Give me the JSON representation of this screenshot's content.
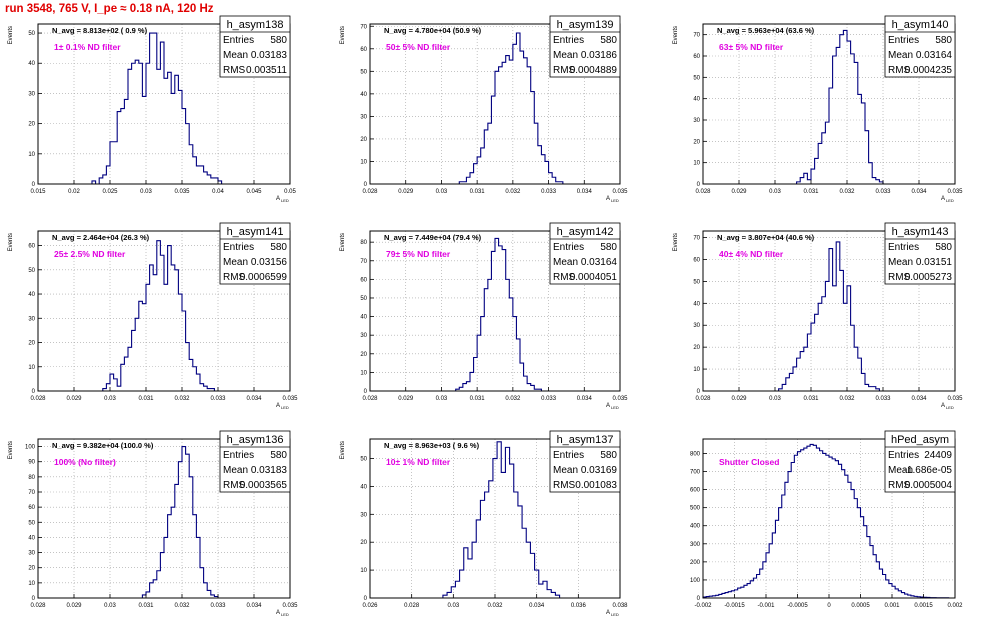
{
  "run_title": "run 3548,   765 V, I_pe ≈ 0.18 nA, 120 Hz",
  "colors": {
    "title": "#e00000",
    "histogram": "#000080",
    "annotation": "#e000e0",
    "grid": "#a0a0a0",
    "axis": "#000000"
  },
  "chart_data": [
    {
      "type": "bar",
      "hist_name": "h_asym138",
      "ylabel": "Events",
      "xlabel": "A_{LED}",
      "xlim": [
        0.015,
        0.05
      ],
      "ylim": [
        0,
        53
      ],
      "xticks": [
        "0.015",
        "0.02",
        "0.025",
        "0.03",
        "0.035",
        "0.04",
        "0.045",
        "0.05"
      ],
      "yticks": [
        "0",
        "10",
        "20",
        "30",
        "40",
        "50"
      ],
      "navg": "N_avg = 8.813e+02 ( 0.9 %)",
      "filter": "1± 0.1% ND filter",
      "stats": [
        [
          "Entries",
          "580"
        ],
        [
          "Mean",
          "0.03183"
        ],
        [
          "RMS",
          "0.003511"
        ]
      ],
      "bins": {
        "start": 0.0225,
        "width": 0.0005,
        "values": [
          1,
          0,
          2,
          3,
          6,
          14,
          14,
          24,
          25,
          28,
          38,
          40,
          41,
          40,
          29,
          40,
          50,
          50,
          38,
          47,
          35,
          37,
          30,
          36,
          31,
          25,
          20,
          13,
          9,
          6,
          6,
          4,
          3,
          2,
          2,
          1
        ]
      }
    },
    {
      "type": "bar",
      "hist_name": "h_asym139",
      "ylabel": "Events",
      "xlabel": "A_{LED}",
      "xlim": [
        0.028,
        0.035
      ],
      "ylim": [
        0,
        71
      ],
      "xticks": [
        "0.028",
        "0.029",
        "0.03",
        "0.031",
        "0.032",
        "0.033",
        "0.034",
        "0.035"
      ],
      "yticks": [
        "0",
        "10",
        "20",
        "30",
        "40",
        "50",
        "60",
        "70"
      ],
      "navg": "N_avg = 4.780e+04 (50.9 %)",
      "filter": "50± 5% ND filter",
      "stats": [
        [
          "Entries",
          "580"
        ],
        [
          "Mean",
          "0.03186"
        ],
        [
          "RMS",
          "0.0004889"
        ]
      ],
      "bins": {
        "start": 0.0305,
        "width": 0.0001,
        "values": [
          1,
          1,
          3,
          5,
          9,
          12,
          16,
          24,
          27,
          39,
          50,
          52,
          54,
          57,
          55,
          62,
          67,
          59,
          56,
          52,
          41,
          27,
          17,
          13,
          10,
          5,
          3,
          1,
          1
        ]
      }
    },
    {
      "type": "bar",
      "hist_name": "h_asym140",
      "ylabel": "Events",
      "xlabel": "A_{LED}",
      "xlim": [
        0.028,
        0.035
      ],
      "ylim": [
        0,
        75
      ],
      "xticks": [
        "0.028",
        "0.029",
        "0.03",
        "0.031",
        "0.032",
        "0.033",
        "0.034",
        "0.035"
      ],
      "yticks": [
        "0",
        "10",
        "20",
        "30",
        "40",
        "50",
        "60",
        "70"
      ],
      "navg": "N_avg = 5.963e+04 (63.6 %)",
      "filter": "63± 5% ND filter",
      "stats": [
        [
          "Entries",
          "580"
        ],
        [
          "Mean",
          "0.03164"
        ],
        [
          "RMS",
          "0.0004235"
        ]
      ],
      "bins": {
        "start": 0.0306,
        "width": 0.0001,
        "values": [
          1,
          3,
          5,
          2,
          7,
          12,
          19,
          24,
          29,
          45,
          60,
          64,
          70,
          72,
          67,
          61,
          57,
          42,
          38,
          25,
          10,
          3,
          2,
          1
        ]
      }
    },
    {
      "type": "bar",
      "hist_name": "h_asym141",
      "ylabel": "Events",
      "xlabel": "A_{LED}",
      "xlim": [
        0.028,
        0.035
      ],
      "ylim": [
        0,
        66
      ],
      "xticks": [
        "0.028",
        "0.029",
        "0.03",
        "0.031",
        "0.032",
        "0.033",
        "0.034",
        "0.035"
      ],
      "yticks": [
        "0",
        "10",
        "20",
        "30",
        "40",
        "50",
        "60"
      ],
      "navg": "N_avg = 2.464e+04 (26.3 %)",
      "filter": "25± 2.5% ND filter",
      "stats": [
        [
          "Entries",
          "580"
        ],
        [
          "Mean",
          "0.03156"
        ],
        [
          "RMS",
          "0.0006599"
        ]
      ],
      "bins": {
        "start": 0.0298,
        "width": 0.0001,
        "values": [
          1,
          3,
          7,
          5,
          2,
          11,
          14,
          18,
          25,
          30,
          37,
          36,
          44,
          52,
          48,
          62,
          56,
          44,
          60,
          52,
          50,
          40,
          33,
          20,
          13,
          10,
          7,
          3,
          2,
          1,
          1
        ]
      }
    },
    {
      "type": "bar",
      "hist_name": "h_asym142",
      "ylabel": "Events",
      "xlabel": "A_{LED}",
      "xlim": [
        0.028,
        0.035
      ],
      "ylim": [
        0,
        86
      ],
      "xticks": [
        "0.028",
        "0.029",
        "0.03",
        "0.031",
        "0.032",
        "0.033",
        "0.034",
        "0.035"
      ],
      "yticks": [
        "0",
        "10",
        "20",
        "30",
        "40",
        "50",
        "60",
        "70",
        "80"
      ],
      "navg": "N_avg = 7.449e+04 (79.4 %)",
      "filter": "79± 5% ND filter",
      "stats": [
        [
          "Entries",
          "580"
        ],
        [
          "Mean",
          "0.03164"
        ],
        [
          "RMS",
          "0.0004051"
        ]
      ],
      "bins": {
        "start": 0.0304,
        "width": 0.0001,
        "values": [
          1,
          2,
          4,
          5,
          10,
          18,
          30,
          40,
          55,
          60,
          75,
          82,
          78,
          76,
          60,
          50,
          40,
          28,
          15,
          8,
          4,
          3,
          1,
          1
        ]
      }
    },
    {
      "type": "bar",
      "hist_name": "h_asym143",
      "ylabel": "Events",
      "xlabel": "A_{LED}",
      "xlim": [
        0.028,
        0.035
      ],
      "ylim": [
        0,
        73
      ],
      "xticks": [
        "0.028",
        "0.029",
        "0.03",
        "0.031",
        "0.032",
        "0.033",
        "0.034",
        "0.035"
      ],
      "yticks": [
        "0",
        "10",
        "20",
        "30",
        "40",
        "50",
        "60",
        "70"
      ],
      "navg": "N_avg = 3.807e+04 (40.6 %)",
      "filter": "40± 4% ND filter",
      "stats": [
        [
          "Entries",
          "580"
        ],
        [
          "Mean",
          "0.03151"
        ],
        [
          "RMS",
          "0.0005273"
        ]
      ],
      "bins": {
        "start": 0.0301,
        "width": 0.0001,
        "values": [
          1,
          3,
          6,
          8,
          11,
          15,
          18,
          20,
          26,
          31,
          35,
          40,
          43,
          50,
          65,
          48,
          68,
          55,
          40,
          48,
          30,
          20,
          15,
          8,
          3,
          2,
          2,
          1
        ]
      }
    },
    {
      "type": "bar",
      "hist_name": "h_asym136",
      "ylabel": "Events",
      "xlabel": "A_{LED}",
      "xlim": [
        0.028,
        0.035
      ],
      "ylim": [
        0,
        105
      ],
      "xticks": [
        "0.028",
        "0.029",
        "0.03",
        "0.031",
        "0.032",
        "0.033",
        "0.034",
        "0.035"
      ],
      "yticks": [
        "0",
        "10",
        "20",
        "30",
        "40",
        "50",
        "60",
        "70",
        "80",
        "90",
        "100"
      ],
      "navg": "N_avg = 9.382e+04 (100.0 %)",
      "filter": "100% (No filter)",
      "stats": [
        [
          "Entries",
          "580"
        ],
        [
          "Mean",
          "0.03183"
        ],
        [
          "RMS",
          "0.0003565"
        ]
      ],
      "bins": {
        "start": 0.0309,
        "width": 0.0001,
        "values": [
          2,
          4,
          10,
          12,
          18,
          30,
          40,
          55,
          60,
          75,
          90,
          100,
          95,
          80,
          55,
          40,
          20,
          10,
          5,
          2,
          1
        ]
      }
    },
    {
      "type": "bar",
      "hist_name": "h_asym137",
      "ylabel": "Events",
      "xlabel": "A_{LED}",
      "xlim": [
        0.026,
        0.038
      ],
      "ylim": [
        0,
        57
      ],
      "xticks": [
        "0.026",
        "0.028",
        "0.03",
        "0.032",
        "0.034",
        "0.036",
        "0.038"
      ],
      "yticks": [
        "0",
        "10",
        "20",
        "30",
        "40",
        "50"
      ],
      "navg": "N_avg = 8.963e+03 ( 9.6 %)",
      "filter": "10± 1% ND filter",
      "stats": [
        [
          "Entries",
          "580"
        ],
        [
          "Mean",
          "0.03169"
        ],
        [
          "RMS",
          "0.001083"
        ]
      ],
      "bins": {
        "start": 0.0295,
        "width": 0.0002,
        "values": [
          1,
          2,
          4,
          6,
          10,
          18,
          14,
          20,
          28,
          35,
          38,
          42,
          50,
          56,
          45,
          54,
          48,
          38,
          33,
          25,
          20,
          16,
          10,
          5,
          6,
          3,
          2,
          1
        ]
      }
    },
    {
      "type": "bar",
      "hist_name": "hPed_asym",
      "ylabel": "",
      "xlabel": "",
      "xlim": [
        -0.002,
        0.002
      ],
      "ylim": [
        0,
        880
      ],
      "xticks": [
        "-0.002",
        "-0.0015",
        "-0.001",
        "-0.0005",
        "0",
        "0.0005",
        "0.001",
        "0.0015",
        "0.002"
      ],
      "yticks": [
        "0",
        "100",
        "200",
        "300",
        "400",
        "500",
        "600",
        "700",
        "800"
      ],
      "navg": "",
      "filter": "Shutter Closed",
      "stats": [
        [
          "Entries",
          "24409"
        ],
        [
          "Mean",
          "-1.686e-05"
        ],
        [
          "RMS",
          "0.0005004"
        ]
      ],
      "bins": {
        "start": -0.002,
        "width": 5e-05,
        "values": [
          5,
          8,
          10,
          12,
          15,
          20,
          25,
          30,
          35,
          40,
          45,
          55,
          60,
          70,
          80,
          95,
          110,
          130,
          160,
          200,
          250,
          300,
          360,
          430,
          500,
          570,
          640,
          700,
          750,
          790,
          810,
          820,
          830,
          840,
          850,
          845,
          830,
          815,
          800,
          790,
          780,
          770,
          760,
          740,
          710,
          680,
          640,
          600,
          550,
          500,
          450,
          400,
          340,
          290,
          240,
          200,
          160,
          130,
          100,
          80,
          65,
          50,
          40,
          30,
          22,
          16,
          12,
          9,
          7,
          5,
          4,
          3,
          2,
          2,
          1,
          1,
          1,
          1,
          0,
          0
        ]
      }
    }
  ]
}
